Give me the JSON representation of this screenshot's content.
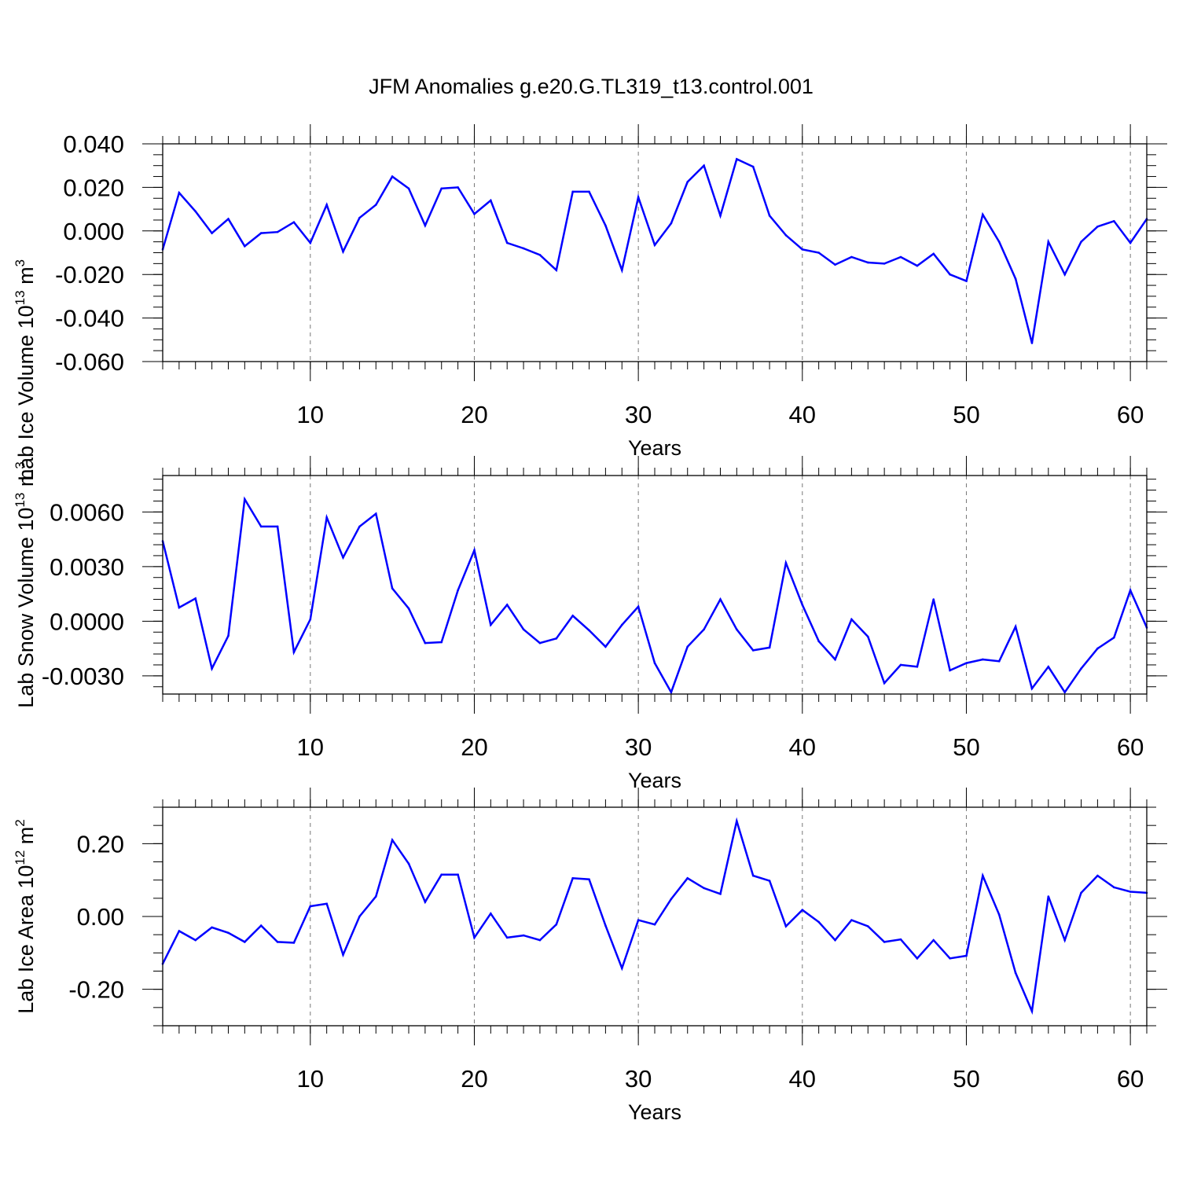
{
  "title": "JFM Anomalies g.e20.G.TL319_t13.control.001",
  "colors": {
    "line": "#0000ff",
    "grid": "#777777",
    "axis": "#000000"
  },
  "chart_data": [
    {
      "type": "line",
      "ylabel": "Lab Ice Volume 10",
      "ylabel_sup": "13",
      "ylabel_unit": "m",
      "ylabel_unit_sup": "3",
      "xlabel": "Years",
      "xlim": [
        1,
        61
      ],
      "ylim": [
        -0.06,
        0.04
      ],
      "x_ticks": [
        10,
        20,
        30,
        40,
        50,
        60
      ],
      "x_tick_labels": [
        "10",
        "20",
        "30",
        "40",
        "50",
        "60"
      ],
      "y_ticks": [
        0.04,
        0.02,
        0.0,
        -0.02,
        -0.04,
        -0.06
      ],
      "y_tick_labels": [
        "0.040",
        "0.020",
        "0.000",
        "-0.020",
        "-0.040",
        "-0.060"
      ],
      "x_minor_step": 1,
      "y_minor_step": 0.005,
      "grid_x": [
        10,
        20,
        30,
        40,
        50,
        60
      ],
      "x_start": 1,
      "values": [
        -0.0085,
        0.0175,
        0.009,
        -0.001,
        0.0055,
        -0.007,
        -0.001,
        -0.0005,
        0.004,
        -0.0055,
        0.012,
        -0.0095,
        0.006,
        0.012,
        0.025,
        0.0195,
        0.0025,
        0.0195,
        0.02,
        0.0078,
        0.014,
        -0.0055,
        -0.008,
        -0.011,
        -0.018,
        0.018,
        0.018,
        0.0025,
        -0.018,
        0.0155,
        -0.0065,
        0.0035,
        0.0225,
        0.03,
        0.007,
        0.033,
        0.0295,
        0.007,
        -0.002,
        -0.0085,
        -0.01,
        -0.0155,
        -0.012,
        -0.0145,
        -0.015,
        -0.012,
        -0.016,
        -0.0105,
        -0.02,
        -0.023,
        0.0075,
        -0.005,
        -0.022,
        -0.0515,
        -0.005,
        -0.02,
        -0.005,
        0.002,
        0.0045,
        -0.0055,
        0.0055
      ]
    },
    {
      "type": "line",
      "ylabel": "Lab Snow Volume 10",
      "ylabel_sup": "13",
      "ylabel_unit": "m",
      "ylabel_unit_sup": "3",
      "xlabel": "Years",
      "xlim": [
        1,
        61
      ],
      "ylim": [
        -0.004,
        0.008
      ],
      "x_ticks": [
        10,
        20,
        30,
        40,
        50,
        60
      ],
      "x_tick_labels": [
        "10",
        "20",
        "30",
        "40",
        "50",
        "60"
      ],
      "y_ticks": [
        0.006,
        0.003,
        0.0,
        -0.003
      ],
      "y_tick_labels": [
        "0.0060",
        "0.0030",
        "0.0000",
        "-0.0030"
      ],
      "x_minor_step": 1,
      "y_minor_step": 0.0006,
      "grid_x": [
        10,
        20,
        30,
        40,
        50,
        60
      ],
      "x_start": 1,
      "values": [
        0.0044,
        0.00075,
        0.00125,
        -0.0026,
        -0.0008,
        0.0067,
        0.0052,
        0.0052,
        -0.0017,
        0.0001,
        0.0057,
        0.0035,
        0.0052,
        0.0059,
        0.0018,
        0.0007,
        -0.0012,
        -0.00115,
        0.0017,
        0.0039,
        -0.0002,
        0.0009,
        -0.00045,
        -0.0012,
        -0.00095,
        0.0003,
        -0.0005,
        -0.0014,
        -0.0002,
        0.0008,
        -0.0023,
        -0.0039,
        -0.0014,
        -0.00045,
        0.0012,
        -0.00045,
        -0.0016,
        -0.00145,
        0.0032,
        0.0009,
        -0.0011,
        -0.0021,
        0.0001,
        -0.00085,
        -0.0034,
        -0.0024,
        -0.0025,
        0.0012,
        -0.0027,
        -0.0023,
        -0.0021,
        -0.0022,
        -0.0003,
        -0.0037,
        -0.0025,
        -0.0039,
        -0.0026,
        -0.0015,
        -0.0009,
        0.0017,
        -0.00035
      ]
    },
    {
      "type": "line",
      "ylabel": "Lab Ice Area 10",
      "ylabel_sup": "12",
      "ylabel_unit": "m",
      "ylabel_unit_sup": "2",
      "xlabel": "Years",
      "xlim": [
        1,
        61
      ],
      "ylim": [
        -0.3,
        0.3
      ],
      "x_ticks": [
        10,
        20,
        30,
        40,
        50,
        60
      ],
      "x_tick_labels": [
        "10",
        "20",
        "30",
        "40",
        "50",
        "60"
      ],
      "y_ticks": [
        0.2,
        0.0,
        -0.2
      ],
      "y_tick_labels": [
        "0.20",
        "0.00",
        "-0.20"
      ],
      "x_minor_step": 1,
      "y_minor_step": 0.05,
      "grid_x": [
        10,
        20,
        30,
        40,
        50,
        60
      ],
      "x_start": 1,
      "values": [
        -0.13,
        -0.04,
        -0.065,
        -0.03,
        -0.045,
        -0.07,
        -0.025,
        -0.07,
        -0.072,
        0.028,
        0.035,
        -0.105,
        0.0,
        0.055,
        0.21,
        0.145,
        0.04,
        0.115,
        0.115,
        -0.058,
        0.008,
        -0.058,
        -0.052,
        -0.065,
        -0.022,
        0.105,
        0.102,
        -0.025,
        -0.142,
        -0.01,
        -0.022,
        0.048,
        0.105,
        0.078,
        0.062,
        0.262,
        0.112,
        0.098,
        -0.027,
        0.018,
        -0.015,
        -0.065,
        -0.01,
        -0.027,
        -0.07,
        -0.063,
        -0.115,
        -0.065,
        -0.115,
        -0.108,
        0.112,
        0.005,
        -0.155,
        -0.26,
        0.055,
        -0.065,
        0.065,
        0.112,
        0.08,
        0.068,
        0.065
      ]
    }
  ]
}
